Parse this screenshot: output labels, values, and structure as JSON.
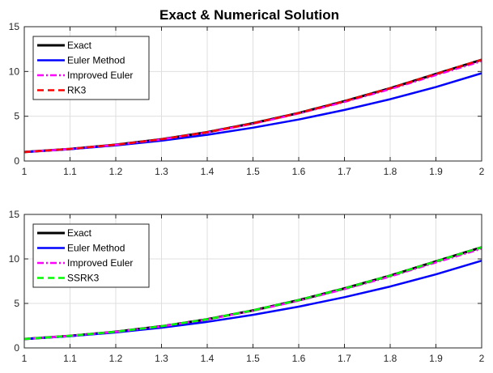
{
  "figure": {
    "title": "Exact & Numerical Solution"
  },
  "chart_data": [
    {
      "type": "line",
      "xlim": [
        1,
        2
      ],
      "ylim": [
        0,
        15
      ],
      "xticks": [
        1,
        1.1,
        1.2,
        1.3,
        1.4,
        1.5,
        1.6,
        1.7,
        1.8,
        1.9,
        2
      ],
      "yticks": [
        0,
        5,
        10,
        15
      ],
      "grid": true,
      "legend_position": "top-left",
      "series": [
        {
          "name": "Exact",
          "color": "#000000",
          "dash": "solid",
          "x": [
            1,
            1.1,
            1.2,
            1.3,
            1.4,
            1.5,
            1.6,
            1.7,
            1.8,
            1.9,
            2
          ],
          "y": [
            1,
            1.35,
            1.82,
            2.43,
            3.22,
            4.21,
            5.36,
            6.68,
            8.12,
            9.72,
            11.3
          ]
        },
        {
          "name": "Euler Method",
          "color": "#0000ff",
          "dash": "solid",
          "x": [
            1,
            1.1,
            1.2,
            1.3,
            1.4,
            1.5,
            1.6,
            1.7,
            1.8,
            1.9,
            2
          ],
          "y": [
            1,
            1.32,
            1.74,
            2.27,
            2.93,
            3.72,
            4.64,
            5.7,
            6.9,
            8.26,
            9.8
          ]
        },
        {
          "name": "Improved Euler",
          "color": "#ff00ff",
          "dash": "dashdot",
          "x": [
            1,
            1.1,
            1.2,
            1.3,
            1.4,
            1.5,
            1.6,
            1.7,
            1.8,
            1.9,
            2
          ],
          "y": [
            1,
            1.35,
            1.81,
            2.41,
            3.19,
            4.16,
            5.3,
            6.6,
            8.02,
            9.6,
            11.15
          ]
        },
        {
          "name": "RK3",
          "color": "#ff0000",
          "dash": "dashed",
          "x": [
            1,
            1.1,
            1.2,
            1.3,
            1.4,
            1.5,
            1.6,
            1.7,
            1.8,
            1.9,
            2
          ],
          "y": [
            1,
            1.35,
            1.82,
            2.43,
            3.22,
            4.21,
            5.36,
            6.68,
            8.12,
            9.72,
            11.3
          ]
        }
      ]
    },
    {
      "type": "line",
      "xlim": [
        1,
        2
      ],
      "ylim": [
        0,
        15
      ],
      "xticks": [
        1,
        1.1,
        1.2,
        1.3,
        1.4,
        1.5,
        1.6,
        1.7,
        1.8,
        1.9,
        2
      ],
      "yticks": [
        0,
        5,
        10,
        15
      ],
      "grid": true,
      "legend_position": "top-left",
      "series": [
        {
          "name": "Exact",
          "color": "#000000",
          "dash": "solid",
          "x": [
            1,
            1.1,
            1.2,
            1.3,
            1.4,
            1.5,
            1.6,
            1.7,
            1.8,
            1.9,
            2
          ],
          "y": [
            1,
            1.35,
            1.82,
            2.43,
            3.22,
            4.21,
            5.36,
            6.68,
            8.12,
            9.72,
            11.3
          ]
        },
        {
          "name": "Euler Method",
          "color": "#0000ff",
          "dash": "solid",
          "x": [
            1,
            1.1,
            1.2,
            1.3,
            1.4,
            1.5,
            1.6,
            1.7,
            1.8,
            1.9,
            2
          ],
          "y": [
            1,
            1.32,
            1.74,
            2.27,
            2.93,
            3.72,
            4.64,
            5.7,
            6.9,
            8.26,
            9.8
          ]
        },
        {
          "name": "Improved Euler",
          "color": "#ff00ff",
          "dash": "dashdot",
          "x": [
            1,
            1.1,
            1.2,
            1.3,
            1.4,
            1.5,
            1.6,
            1.7,
            1.8,
            1.9,
            2
          ],
          "y": [
            1,
            1.35,
            1.81,
            2.41,
            3.19,
            4.16,
            5.3,
            6.6,
            8.02,
            9.6,
            11.15
          ]
        },
        {
          "name": "SSRK3",
          "color": "#00ff00",
          "dash": "dashed",
          "x": [
            1,
            1.1,
            1.2,
            1.3,
            1.4,
            1.5,
            1.6,
            1.7,
            1.8,
            1.9,
            2
          ],
          "y": [
            1,
            1.35,
            1.82,
            2.43,
            3.22,
            4.21,
            5.36,
            6.68,
            8.12,
            9.72,
            11.3
          ]
        }
      ]
    }
  ]
}
